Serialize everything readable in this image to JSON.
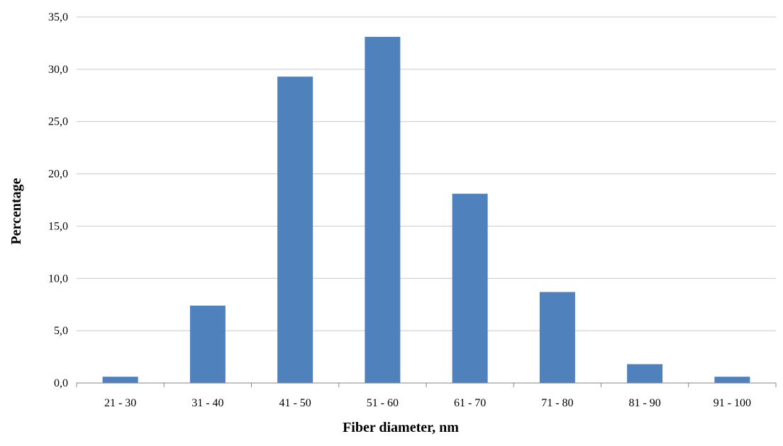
{
  "chart_data": {
    "type": "bar",
    "title": "",
    "xlabel": "Fiber diameter, nm",
    "ylabel": "Percentage",
    "categories": [
      "21 - 30",
      "31 - 40",
      "41 - 50",
      "51 - 60",
      "61 - 70",
      "71 - 80",
      "81 - 90",
      "91 - 100"
    ],
    "values": [
      0.6,
      7.4,
      29.3,
      33.1,
      18.1,
      8.7,
      1.8,
      0.6
    ],
    "ylim": [
      0,
      35
    ],
    "yticks": [
      "0,0",
      "5,0",
      "10,0",
      "15,0",
      "20,0",
      "25,0",
      "30,0",
      "35,0"
    ],
    "grid": true,
    "legend": "none",
    "colors": {
      "bar": "#4f81bd",
      "grid": "#c8c8c8",
      "axis": "#868686"
    }
  }
}
